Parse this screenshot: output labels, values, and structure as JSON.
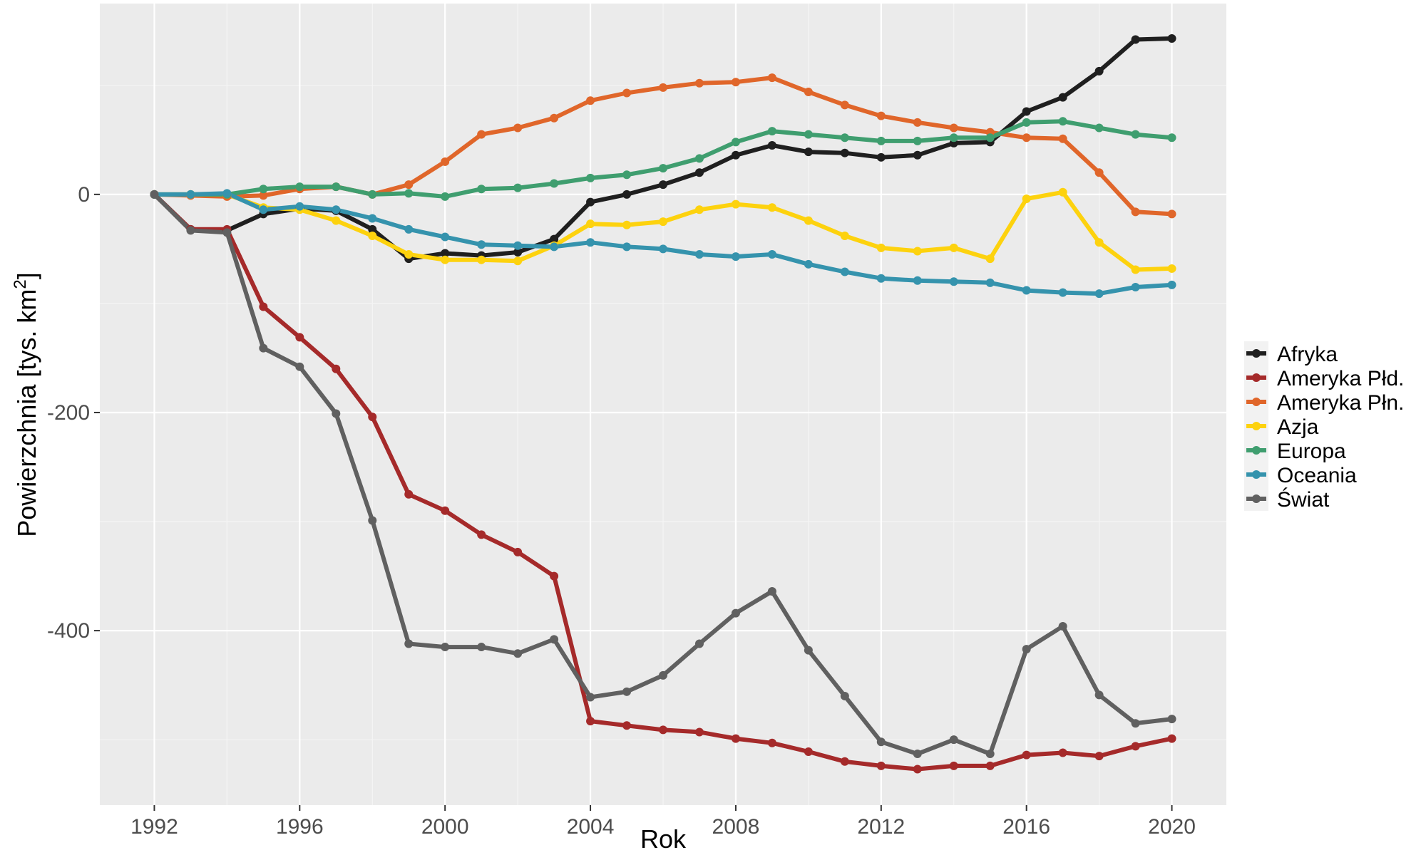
{
  "chart_data": {
    "type": "line",
    "xlabel": "Rok",
    "ylabel": "Powierzchnia [tys. km",
    "ylabel_superscript": "2",
    "ylabel_suffix": "]",
    "xlim": [
      1990.5,
      2021.5
    ],
    "ylim": [
      -560,
      175
    ],
    "x_ticks": [
      1992,
      1996,
      2000,
      2004,
      2008,
      2012,
      2016,
      2020
    ],
    "x_tick_labels": [
      "1992",
      "1996",
      "2000",
      "2004",
      "2008",
      "2012",
      "2016",
      "2020"
    ],
    "y_ticks": [
      0,
      -200,
      -400
    ],
    "y_tick_labels": [
      "0",
      "-200",
      "-400"
    ],
    "grid": true,
    "legend_position": "right",
    "background": "#ebebeb",
    "x": [
      1992,
      1993,
      1994,
      1995,
      1996,
      1997,
      1998,
      1999,
      2000,
      2001,
      2002,
      2003,
      2004,
      2005,
      2006,
      2007,
      2008,
      2009,
      2010,
      2011,
      2012,
      2013,
      2014,
      2015,
      2016,
      2017,
      2018,
      2019,
      2020
    ],
    "series": [
      {
        "name": "Afryka",
        "color": "#1f1f1f",
        "values": [
          0,
          -32,
          -33,
          -18,
          -13,
          -15,
          -32,
          -59,
          -54,
          -56,
          -53,
          -41,
          -7,
          0,
          9,
          20,
          36,
          45,
          39,
          38,
          34,
          36,
          47,
          48,
          76,
          89,
          113,
          142,
          143
        ]
      },
      {
        "name": "Ameryka Płd.",
        "color": "#a52a2a",
        "values": [
          0,
          -32,
          -32,
          -103,
          -131,
          -160,
          -204,
          -275,
          -290,
          -312,
          -328,
          -350,
          -483,
          -487,
          -491,
          -493,
          -499,
          -503,
          -511,
          -520,
          -524,
          -527,
          -524,
          -524,
          -514,
          -512,
          -515,
          -506,
          -499
        ]
      },
      {
        "name": "Ameryka Płn.",
        "color": "#e0662a",
        "values": [
          0,
          -1,
          -2,
          -1,
          5,
          7,
          0,
          9,
          30,
          55,
          61,
          70,
          86,
          93,
          98,
          102,
          103,
          107,
          94,
          82,
          72,
          66,
          61,
          57,
          52,
          51,
          20,
          -16,
          -18
        ]
      },
      {
        "name": "Azja",
        "color": "#fdd20e",
        "values": [
          0,
          0,
          0,
          -12,
          -14,
          -24,
          -38,
          -55,
          -60,
          -60,
          -61,
          -47,
          -27,
          -28,
          -25,
          -14,
          -9,
          -12,
          -24,
          -38,
          -49,
          -52,
          -49,
          -59,
          -4,
          2,
          -44,
          -69,
          -68
        ]
      },
      {
        "name": "Europa",
        "color": "#3f9e6f",
        "values": [
          0,
          0,
          0,
          5,
          7,
          7,
          0,
          1,
          -2,
          5,
          6,
          10,
          15,
          18,
          24,
          33,
          48,
          58,
          55,
          52,
          49,
          49,
          52,
          52,
          66,
          67,
          61,
          55,
          52
        ]
      },
      {
        "name": "Oceania",
        "color": "#3593ad",
        "values": [
          0,
          0,
          1,
          -14,
          -11,
          -14,
          -22,
          -32,
          -39,
          -46,
          -47,
          -48,
          -44,
          -48,
          -50,
          -55,
          -57,
          -55,
          -64,
          -71,
          -77,
          -79,
          -80,
          -81,
          -88,
          -90,
          -91,
          -85,
          -83
        ]
      },
      {
        "name": "Świat",
        "color": "#606060",
        "values": [
          0,
          -33,
          -35,
          -141,
          -158,
          -201,
          -299,
          -412,
          -415,
          -415,
          -421,
          -408,
          -461,
          -456,
          -441,
          -412,
          -384,
          -364,
          -418,
          -460,
          -502,
          -513,
          -500,
          -513,
          -417,
          -396,
          -459,
          -485,
          -481
        ]
      }
    ]
  }
}
